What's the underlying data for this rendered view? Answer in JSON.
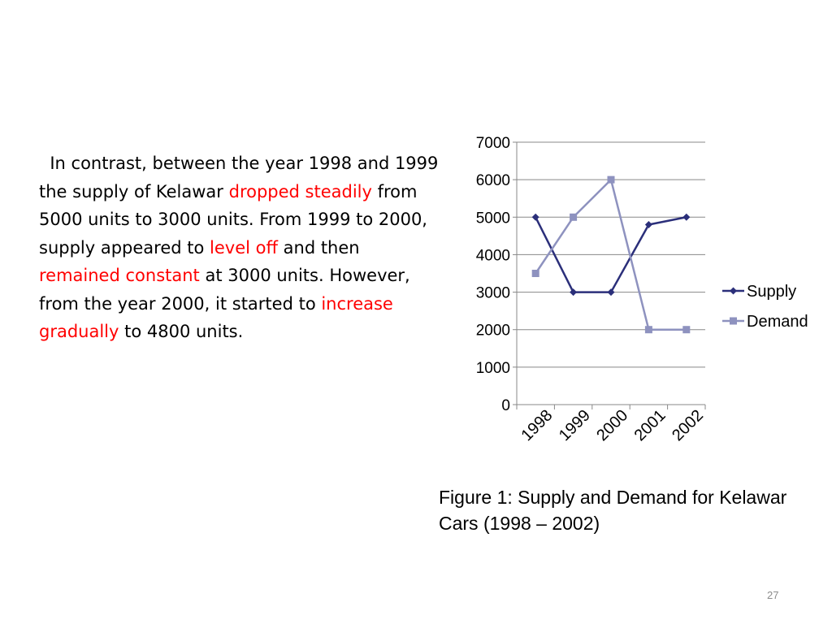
{
  "body_text": [
    {
      "text": "  In contrast, between the year 1998 and 1999 the supply of Kelawar ",
      "highlight": false
    },
    {
      "text": "dropped steadily",
      "highlight": true
    },
    {
      "text": " from 5000 units to 3000 units. From 1999 to 2000, supply appeared to ",
      "highlight": false
    },
    {
      "text": "level off",
      "highlight": true
    },
    {
      "text": " and then ",
      "highlight": false
    },
    {
      "text": "remained constant",
      "highlight": true
    },
    {
      "text": " at 3000 units. However, from the year 2000, it started to ",
      "highlight": false
    },
    {
      "text": "increase gradually",
      "highlight": true
    },
    {
      "text": " to 4800 units.",
      "highlight": false
    }
  ],
  "colors": {
    "text": "#000000",
    "highlight": "#ff0000",
    "supply": "#2b2f7a",
    "demand": "#8e92bf",
    "gridline": "#888888",
    "page_number": "#8c8c8c"
  },
  "chart_data": {
    "type": "line",
    "categories": [
      "1998",
      "1999",
      "2000",
      "2001",
      "2002"
    ],
    "series": [
      {
        "name": "Supply",
        "values": [
          5000,
          3000,
          3000,
          4800,
          5000
        ],
        "marker": "diamond",
        "color": "#2b2f7a"
      },
      {
        "name": "Demand",
        "values": [
          3500,
          5000,
          6000,
          2000,
          2000
        ],
        "marker": "square",
        "color": "#8e92bf"
      }
    ],
    "yticks": [
      0,
      1000,
      2000,
      3000,
      4000,
      5000,
      6000,
      7000
    ],
    "ylim": [
      0,
      7000
    ],
    "grid": true,
    "legend": "right",
    "title": "",
    "xlabel": "",
    "ylabel": ""
  },
  "caption": "Figure 1: Supply and Demand for Kelawar Cars (1998 – 2002)",
  "page_number": "27"
}
